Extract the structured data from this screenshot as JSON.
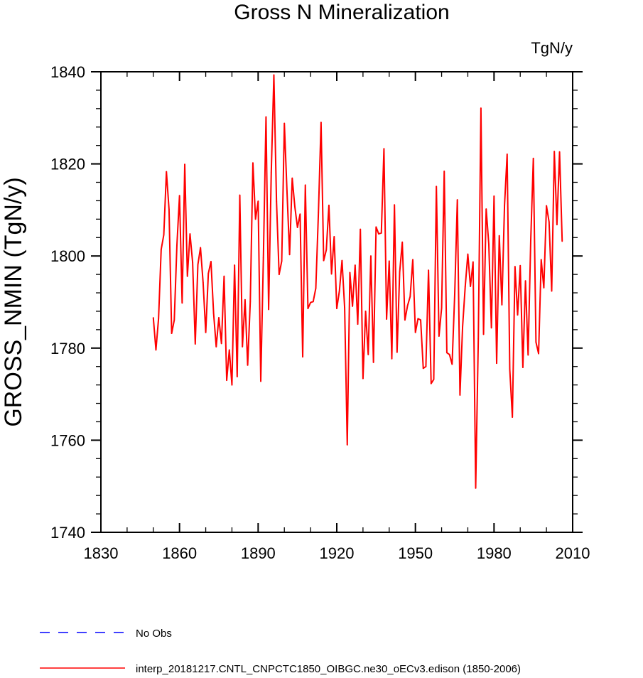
{
  "chart_data": {
    "type": "line",
    "title": "Gross N Mineralization",
    "units_label": "TgN/y",
    "xlabel": "",
    "ylabel": "GROSS_NMIN  (TgN/y)",
    "xlim": [
      1830,
      2010
    ],
    "ylim": [
      1740,
      1840
    ],
    "x_ticks": [
      1830,
      1860,
      1890,
      1920,
      1950,
      1980,
      2010
    ],
    "y_ticks": [
      1740,
      1760,
      1780,
      1800,
      1820,
      1840
    ],
    "x_minor_step": 10,
    "y_minor_step": 4,
    "legend": [
      {
        "label": "No Obs",
        "color": "#0000ff",
        "style": "dashed"
      },
      {
        "label": "interp_20181217.CNTL_CNPCTC1850_OIBGC.ne30_oECv3.edison (1850-2006)",
        "color": "#ff0000",
        "style": "solid"
      }
    ],
    "series": [
      {
        "name": "interp_20181217.CNTL_CNPCTC1850_OIBGC.ne30_oECv3.edison (1850-2006)",
        "color": "#ff0000",
        "x_start": 1850,
        "x_step": 1,
        "values": [
          1786.6,
          1779.6,
          1786.4,
          1801.4,
          1804.6,
          1818.3,
          1810.1,
          1783.2,
          1786.1,
          1802.3,
          1813.1,
          1789.8,
          1819.9,
          1795.6,
          1804.8,
          1798.6,
          1780.9,
          1798.1,
          1801.8,
          1794.2,
          1783.4,
          1796.2,
          1798.8,
          1787.6,
          1780.3,
          1786.6,
          1781.0,
          1795.6,
          1773.0,
          1779.6,
          1772.0,
          1798.0,
          1773.8,
          1813.2,
          1780.3,
          1790.5,
          1776.3,
          1790.1,
          1820.2,
          1808.0,
          1811.9,
          1772.8,
          1799.6,
          1830.2,
          1788.4,
          1818.1,
          1839.3,
          1811.9,
          1796.0,
          1798.9,
          1828.8,
          1814.1,
          1800.3,
          1816.9,
          1810.7,
          1806.2,
          1809.1,
          1778.1,
          1815.4,
          1788.6,
          1789.9,
          1790.1,
          1793.0,
          1809.4,
          1829.0,
          1799.0,
          1801.3,
          1811.0,
          1796.1,
          1804.2,
          1788.6,
          1792.4,
          1799.0,
          1788.8,
          1759.0,
          1796.4,
          1789.1,
          1798.0,
          1785.2,
          1805.8,
          1773.4,
          1788.0,
          1778.6,
          1800.0,
          1776.9,
          1806.3,
          1804.8,
          1805.0,
          1823.3,
          1786.3,
          1798.9,
          1777.7,
          1811.1,
          1779.1,
          1796.5,
          1803.0,
          1786.1,
          1789.2,
          1791.2,
          1799.2,
          1783.4,
          1786.4,
          1786.1,
          1775.6,
          1776.0,
          1796.9,
          1772.3,
          1773.2,
          1815.1,
          1782.6,
          1788.7,
          1818.4,
          1779.0,
          1778.6,
          1776.5,
          1791.7,
          1812.2,
          1769.8,
          1784.6,
          1793.3,
          1800.4,
          1793.4,
          1798.7,
          1749.6,
          1782.0,
          1832.1,
          1783.0,
          1810.2,
          1802.6,
          1784.4,
          1813.0,
          1776.7,
          1804.4,
          1789.4,
          1811.0,
          1822.1,
          1775.4,
          1765.0,
          1797.7,
          1787.2,
          1797.9,
          1775.8,
          1794.6,
          1778.5,
          1803.3,
          1821.2,
          1781.3,
          1778.8,
          1799.2,
          1793.1,
          1810.9,
          1807.4,
          1792.4,
          1822.7,
          1806.8,
          1822.6,
          1803.2
        ]
      }
    ]
  }
}
